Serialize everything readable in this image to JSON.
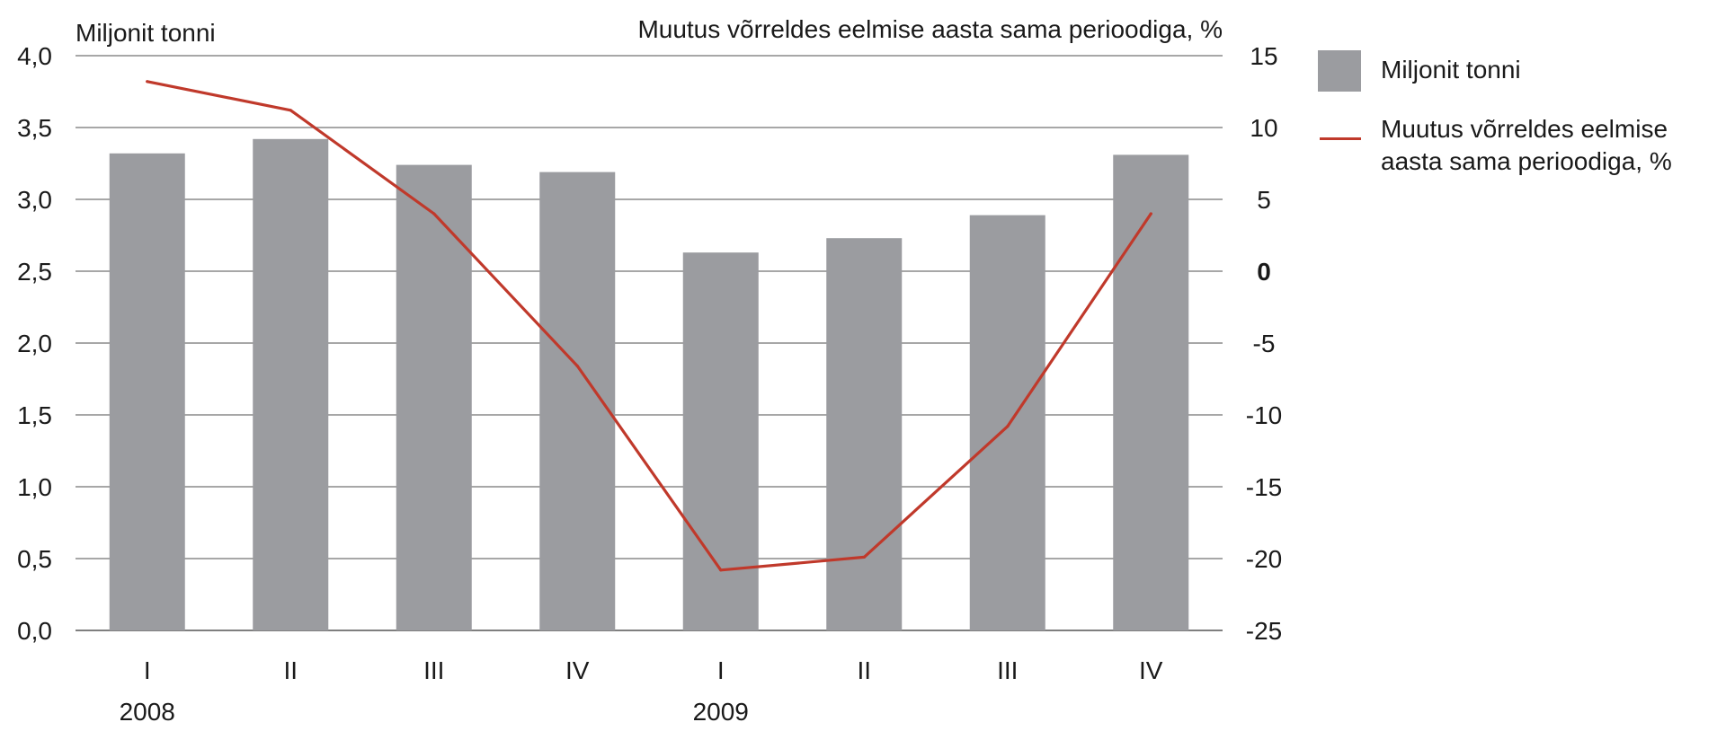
{
  "chart_data": {
    "type": "bar+line",
    "categories": [
      "I",
      "II",
      "III",
      "IV",
      "I",
      "II",
      "III",
      "IV"
    ],
    "year_labels": [
      {
        "label": "2008",
        "index": 0
      },
      {
        "label": "2009",
        "index": 4
      }
    ],
    "left_axis": {
      "title": "Miljonit tonni",
      "ylim": [
        0,
        4
      ],
      "ticks": [
        0,
        0.5,
        1,
        1.5,
        2,
        2.5,
        3,
        3.5,
        4
      ],
      "tick_labels": [
        "0,0",
        "0,5",
        "1,0",
        "1,5",
        "2,0",
        "2,5",
        "3,0",
        "3,5",
        "4,0"
      ]
    },
    "right_axis": {
      "title": "Muutus võrreldes eelmise aasta sama perioodiga, %",
      "ylim": [
        -25,
        15
      ],
      "ticks": [
        -25,
        -20,
        -15,
        -10,
        -5,
        0,
        5,
        10,
        15
      ],
      "tick_labels": [
        "-25",
        "-20",
        "-15",
        "-10",
        "-5",
        "0",
        "5",
        "10",
        "15"
      ]
    },
    "series": [
      {
        "name": "Miljonit tonni",
        "type": "bar",
        "axis": "left",
        "color": "#9b9ca0",
        "values": [
          3.32,
          3.42,
          3.24,
          3.19,
          2.63,
          2.73,
          2.89,
          3.31
        ]
      },
      {
        "name": "Muutus võrreldes eelmise aasta sama perioodiga, %",
        "type": "line",
        "axis": "right",
        "color": "#c0392b",
        "values": [
          13.2,
          11.2,
          4.0,
          -6.6,
          -20.8,
          -19.9,
          -10.8,
          4.0
        ]
      }
    ],
    "grid": true,
    "legend_position": "right"
  },
  "legend": {
    "bar_label": "Miljonit tonni",
    "line_label": "Muutus võrreldes eelmise aasta sama perioodiga, %"
  }
}
